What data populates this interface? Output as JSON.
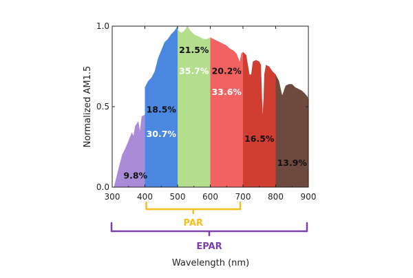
{
  "chart_data": {
    "type": "area",
    "title": "",
    "xlabel": "Wavelength (nm)",
    "ylabel": "Normalized AM1.5",
    "xlim": [
      300,
      900
    ],
    "ylim": [
      0,
      1.0
    ],
    "xticks": [
      "300",
      "400",
      "500",
      "600",
      "700",
      "800",
      "900"
    ],
    "yticks": [
      "0.0",
      "0.5",
      "1.0"
    ],
    "spectrum": [
      [
        305,
        0
      ],
      [
        315,
        0.08
      ],
      [
        320,
        0.12
      ],
      [
        330,
        0.2
      ],
      [
        340,
        0.24
      ],
      [
        350,
        0.29
      ],
      [
        360,
        0.34
      ],
      [
        365,
        0.32
      ],
      [
        370,
        0.38
      ],
      [
        380,
        0.41
      ],
      [
        385,
        0.35
      ],
      [
        390,
        0.44
      ],
      [
        400,
        0.45
      ],
      [
        400.01,
        0.62
      ],
      [
        410,
        0.66
      ],
      [
        420,
        0.68
      ],
      [
        430,
        0.72
      ],
      [
        440,
        0.8
      ],
      [
        450,
        0.85
      ],
      [
        460,
        0.9
      ],
      [
        470,
        0.92
      ],
      [
        480,
        0.95
      ],
      [
        490,
        0.97
      ],
      [
        500,
        1.0
      ],
      [
        500.01,
        0.98
      ],
      [
        510,
        0.96
      ],
      [
        520,
        0.97
      ],
      [
        530,
        1.0
      ],
      [
        540,
        0.97
      ],
      [
        550,
        0.95
      ],
      [
        560,
        0.94
      ],
      [
        570,
        0.93
      ],
      [
        580,
        0.92
      ],
      [
        590,
        0.92
      ],
      [
        600,
        0.93
      ],
      [
        610,
        0.92
      ],
      [
        620,
        0.91
      ],
      [
        630,
        0.9
      ],
      [
        640,
        0.89
      ],
      [
        650,
        0.88
      ],
      [
        660,
        0.86
      ],
      [
        670,
        0.85
      ],
      [
        680,
        0.83
      ],
      [
        690,
        0.78
      ],
      [
        695,
        0.83
      ],
      [
        700,
        0.84
      ],
      [
        710,
        0.82
      ],
      [
        720,
        0.7
      ],
      [
        725,
        0.7
      ],
      [
        730,
        0.78
      ],
      [
        740,
        0.79
      ],
      [
        750,
        0.78
      ],
      [
        755,
        0.76
      ],
      [
        760,
        0.45
      ],
      [
        763,
        0.55
      ],
      [
        765,
        0.7
      ],
      [
        770,
        0.76
      ],
      [
        780,
        0.75
      ],
      [
        790,
        0.72
      ],
      [
        800,
        0.7
      ],
      [
        810,
        0.66
      ],
      [
        820,
        0.57
      ],
      [
        825,
        0.6
      ],
      [
        830,
        0.63
      ],
      [
        840,
        0.64
      ],
      [
        850,
        0.64
      ],
      [
        860,
        0.62
      ],
      [
        870,
        0.61
      ],
      [
        880,
        0.6
      ],
      [
        890,
        0.58
      ],
      [
        898,
        0.56
      ],
      [
        900,
        0.52
      ]
    ],
    "bands": [
      {
        "range": [
          300,
          400
        ],
        "color": "#a98bd8",
        "epar_pct": "9.8%",
        "par_pct": ""
      },
      {
        "range": [
          400,
          500
        ],
        "color": "#4a88e2",
        "epar_pct": "18.5%",
        "par_pct": "30.7%"
      },
      {
        "range": [
          500,
          600
        ],
        "color": "#b4dd8e",
        "epar_pct": "21.5%",
        "par_pct": "35.7%"
      },
      {
        "range": [
          600,
          700
        ],
        "color": "#f26262",
        "epar_pct": "20.2%",
        "par_pct": "33.6%"
      },
      {
        "range": [
          700,
          800
        ],
        "color": "#cf3e30",
        "epar_pct": "16.5%",
        "par_pct": ""
      },
      {
        "range": [
          800,
          900
        ],
        "color": "#6e4a3e",
        "epar_pct": "13.9%",
        "par_pct": ""
      }
    ],
    "brackets": [
      {
        "label": "PAR",
        "range": [
          400,
          700
        ],
        "color": "#f2c01e"
      },
      {
        "label": "EPAR",
        "range": [
          300,
          900
        ],
        "color": "#7a3fa8"
      }
    ]
  }
}
